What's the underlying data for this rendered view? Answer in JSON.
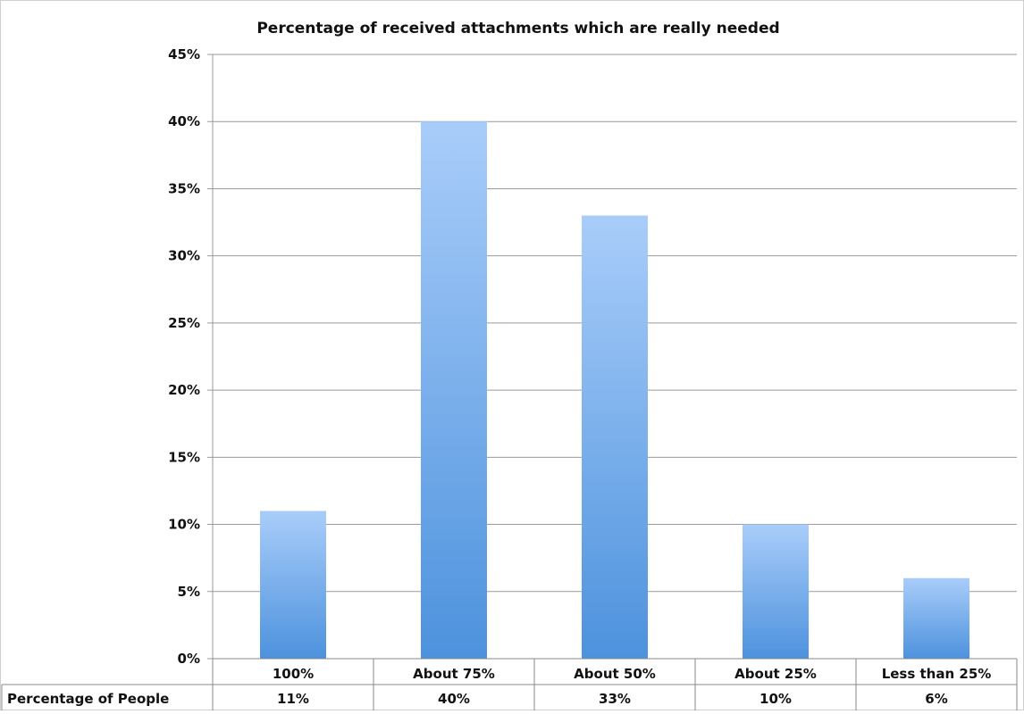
{
  "chart_data": {
    "type": "bar",
    "title": "Percentage of received attachments which are really needed",
    "xlabel": "",
    "ylabel": "",
    "categories": [
      "100%",
      "About 75%",
      "About 50%",
      "About 25%",
      "Less than 25%"
    ],
    "series": [
      {
        "name": "Percentage of People",
        "values": [
          11,
          40,
          33,
          10,
          6
        ],
        "value_labels": [
          "11%",
          "40%",
          "33%",
          "10%",
          "6%"
        ]
      }
    ],
    "ylim": [
      0,
      45
    ],
    "yticks": [
      0,
      5,
      10,
      15,
      20,
      25,
      30,
      35,
      40,
      45
    ],
    "ytick_labels": [
      "0%",
      "5%",
      "10%",
      "15%",
      "20%",
      "25%",
      "30%",
      "35%",
      "40%",
      "45%"
    ],
    "grid": true,
    "legend": "data table below chart",
    "bar_color_top": "#a9cdfa",
    "bar_color_bottom": "#4d92dd"
  }
}
